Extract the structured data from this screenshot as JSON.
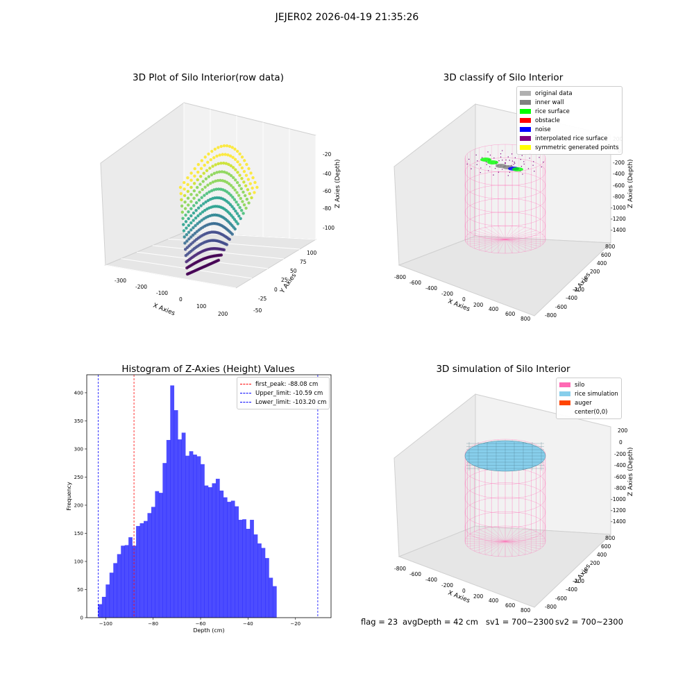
{
  "suptitle": "JEJER02 2026-04-19 21:35:26",
  "status": {
    "flag": "flag = 23",
    "avg_depth": "avgDepth = 42 cm",
    "sv1": "sv1 = 700~2300",
    "sv2": "sv2 = 700~2300"
  },
  "panels": {
    "raw": {
      "title": "3D Plot of Silo Interior(row data)",
      "xlabel": "X Axies",
      "ylabel": "Y Axies",
      "zlabel": "Z Axies (Depth)",
      "xticks": [
        "-300",
        "-200",
        "-100",
        "0",
        "100",
        "200"
      ],
      "yticks": [
        "-50",
        "-25",
        "0",
        "25",
        "50",
        "75",
        "100"
      ],
      "zticks": [
        "-20",
        "-40",
        "-60",
        "-80",
        "-100"
      ]
    },
    "classify": {
      "title": "3D classify of Silo Interior",
      "xlabel": "X Axies",
      "ylabel": "Y Axies",
      "zlabel": "Z Axies (Depth)",
      "xticks": [
        "-800",
        "-600",
        "-400",
        "-200",
        "0",
        "200",
        "400",
        "600",
        "800"
      ],
      "yticks": [
        "-800",
        "-600",
        "-400",
        "-200",
        "0",
        "200",
        "400",
        "600",
        "800"
      ],
      "zticks": [
        "200",
        "0",
        "-200",
        "-400",
        "-600",
        "-800",
        "-1000",
        "-1200",
        "-1400"
      ],
      "legend": [
        {
          "label": "original data",
          "color": "#b0b0b0"
        },
        {
          "label": "inner wall",
          "color": "#808080"
        },
        {
          "label": "rice surface",
          "color": "#00ff00"
        },
        {
          "label": "obstacle",
          "color": "#ff0000"
        },
        {
          "label": "noise",
          "color": "#0000ff"
        },
        {
          "label": "interpolated rice surface",
          "color": "#800080"
        },
        {
          "label": "symmetric generated points",
          "color": "#ffff00"
        }
      ]
    },
    "simulation": {
      "title": "3D simulation of Silo Interior",
      "xlabel": "X Axies",
      "ylabel": "Y Axies",
      "zlabel": "Z Axies (Depth)",
      "xticks": [
        "-800",
        "-600",
        "-400",
        "-200",
        "0",
        "200",
        "400",
        "600",
        "800"
      ],
      "yticks": [
        "-800",
        "-600",
        "-400",
        "-200",
        "0",
        "200",
        "400",
        "600",
        "800"
      ],
      "zticks": [
        "200",
        "0",
        "-200",
        "-400",
        "-600",
        "-800",
        "-1000",
        "-1200",
        "-1400"
      ],
      "legend": [
        {
          "label": "silo",
          "color": "#ff69b4"
        },
        {
          "label": "rice simulation",
          "color": "#87ceeb"
        },
        {
          "label": "auger",
          "color": "#ff4500"
        },
        {
          "label": "center(0,0)",
          "color": "#ffffff"
        }
      ]
    }
  },
  "chart_data": {
    "type": "bar",
    "title": "Histogram of Z-Axies (Height) Values",
    "xlabel": "Depth (cm)",
    "ylabel": "Frequency",
    "xlim": [
      -108,
      -5
    ],
    "ylim": [
      0,
      432
    ],
    "xticks": [
      -100,
      -80,
      -60,
      -40,
      -20
    ],
    "yticks": [
      0,
      50,
      100,
      150,
      200,
      250,
      300,
      350,
      400
    ],
    "bar_color": "#0000ff",
    "bins": {
      "start": -103.2,
      "width": 1.6,
      "values": [
        24,
        37,
        59,
        80,
        97,
        113,
        128,
        129,
        143,
        128,
        163,
        168,
        172,
        186,
        197,
        225,
        222,
        275,
        316,
        413,
        369,
        317,
        329,
        288,
        296,
        290,
        287,
        273,
        235,
        232,
        239,
        247,
        226,
        214,
        206,
        208,
        198,
        174,
        175,
        158,
        174,
        148,
        132,
        124,
        106,
        71,
        56
      ]
    },
    "reference_lines": [
      {
        "label": "first_peak: -88.08 cm",
        "value": -88.08,
        "color": "#ff0000"
      },
      {
        "label": "Upper_limit: -10.59 cm",
        "value": -10.59,
        "color": "#0000ff"
      },
      {
        "label": "Lower_limit: -103.20 cm",
        "value": -103.2,
        "color": "#0000ff"
      }
    ]
  }
}
